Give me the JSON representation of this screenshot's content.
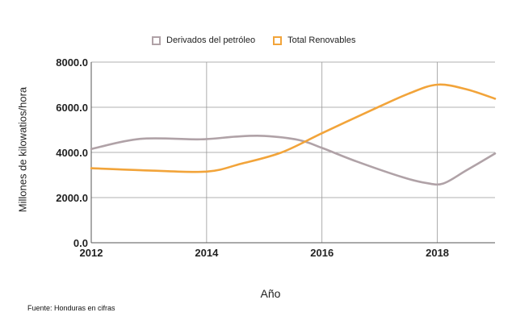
{
  "chart_data": {
    "type": "line",
    "title": "",
    "xlabel": "Año",
    "ylabel": "Millones de kilowatios/hora",
    "xlim": [
      2012,
      2019
    ],
    "ylim": [
      0,
      8000
    ],
    "x_ticks": [
      "2012",
      "2014",
      "2016",
      "2018"
    ],
    "y_ticks": [
      "0.0",
      "2000.0",
      "4000.0",
      "6000.0",
      "8000.0"
    ],
    "grid": true,
    "legend_position": "top-center",
    "series": [
      {
        "name": "Derivados del petróleo",
        "color": "#b0a2a7",
        "x": [
          2012,
          2012.85,
          2013.9,
          2014.5,
          2015,
          2015.6,
          2016,
          2016.6,
          2017.4,
          2017.8,
          2018.1,
          2018.5,
          2019
        ],
        "values": [
          4150,
          4600,
          4580,
          4700,
          4730,
          4550,
          4200,
          3600,
          2900,
          2650,
          2620,
          3200,
          3950
        ]
      },
      {
        "name": "Total Renovables",
        "color": "#f2a43a",
        "x": [
          2012,
          2013,
          2014,
          2014.6,
          2015.3,
          2016,
          2016.8,
          2017.5,
          2018,
          2018.5,
          2019
        ],
        "values": [
          3300,
          3200,
          3150,
          3500,
          4000,
          4850,
          5800,
          6600,
          7000,
          6800,
          6380
        ]
      }
    ]
  },
  "source_note": "Fuente: Honduras en cifras"
}
